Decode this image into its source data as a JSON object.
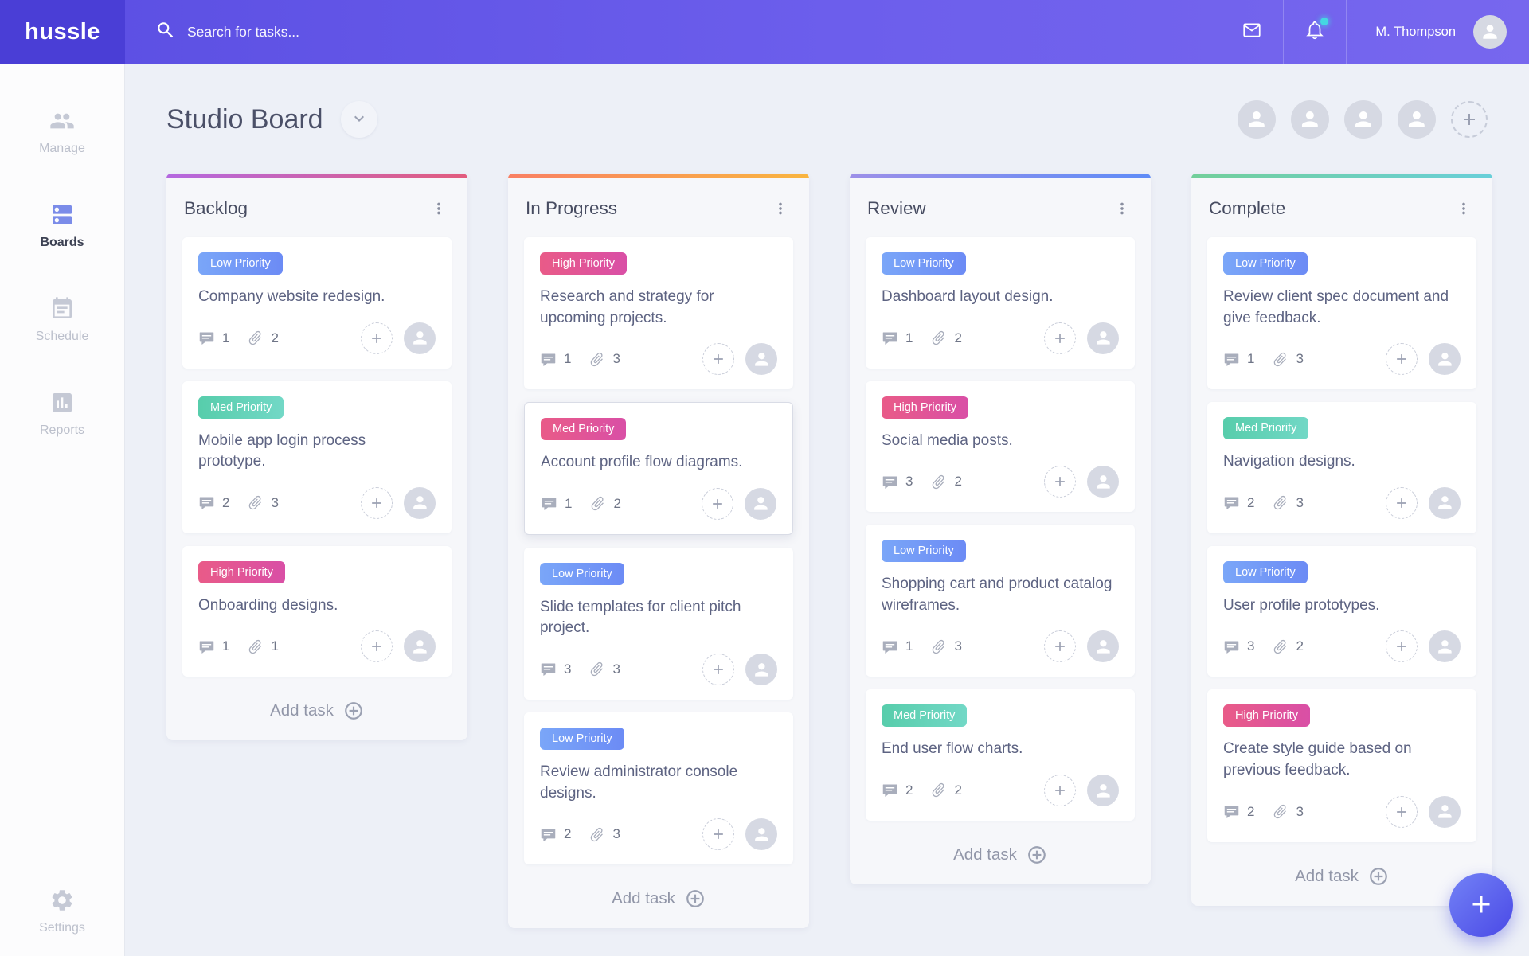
{
  "topbar": {
    "brand": "hussle",
    "search_placeholder": "Search for tasks...",
    "user_name": "M. Thompson",
    "has_notification": true
  },
  "sidebar": {
    "items": [
      {
        "label": "Manage",
        "icon": "people-icon",
        "active": false
      },
      {
        "label": "Boards",
        "icon": "boards-icon",
        "active": true
      },
      {
        "label": "Schedule",
        "icon": "calendar-icon",
        "active": false
      },
      {
        "label": "Reports",
        "icon": "bar-chart-icon",
        "active": false
      }
    ],
    "settings_label": "Settings"
  },
  "header": {
    "title": "Studio Board",
    "member_avatars": 4
  },
  "colors": {
    "topbar_left": "#4a3ed6",
    "topbar_right": "#7767ee",
    "notification_dot": "#45d7e2",
    "pill_low": "#6c8bf5",
    "pill_med": "#57cdab",
    "pill_high": "#e95b88",
    "fab": "#4a49e6"
  },
  "board": {
    "add_task_label": "Add task",
    "columns": [
      {
        "name": "Backlog",
        "accent": [
          "#b468e0",
          "#e25c7d"
        ],
        "cards": [
          {
            "priority": "Low Priority",
            "variant": "blue",
            "title": "Company website redesign.",
            "comments": 1,
            "attachments": 2,
            "selected": false
          },
          {
            "priority": "Med Priority",
            "variant": "teal",
            "title": "Mobile app login process prototype.",
            "comments": 2,
            "attachments": 3,
            "selected": false
          },
          {
            "priority": "High Priority",
            "variant": "pink",
            "title": "Onboarding designs.",
            "comments": 1,
            "attachments": 1,
            "selected": false
          }
        ]
      },
      {
        "name": "In Progress",
        "accent": [
          "#f97f63",
          "#f9b53f"
        ],
        "cards": [
          {
            "priority": "High Priority",
            "variant": "pink",
            "title": "Research and strategy for upcoming projects.",
            "comments": 1,
            "attachments": 3,
            "selected": false
          },
          {
            "priority": "Med Priority",
            "variant": "pink",
            "title": "Account profile flow diagrams.",
            "comments": 1,
            "attachments": 2,
            "selected": true
          },
          {
            "priority": "Low Priority",
            "variant": "blue",
            "title": "Slide templates for client pitch project.",
            "comments": 3,
            "attachments": 3,
            "selected": false
          },
          {
            "priority": "Low Priority",
            "variant": "blue",
            "title": "Review administrator console designs.",
            "comments": 2,
            "attachments": 3,
            "selected": false
          }
        ]
      },
      {
        "name": "Review",
        "accent": [
          "#9c8fe8",
          "#5f8cf7"
        ],
        "cards": [
          {
            "priority": "Low Priority",
            "variant": "blue",
            "title": "Dashboard layout design.",
            "comments": 1,
            "attachments": 2,
            "selected": false
          },
          {
            "priority": "High Priority",
            "variant": "pink",
            "title": "Social media posts.",
            "comments": 3,
            "attachments": 2,
            "selected": false
          },
          {
            "priority": "Low Priority",
            "variant": "blue",
            "title": "Shopping cart and product catalog wireframes.",
            "comments": 1,
            "attachments": 3,
            "selected": false
          },
          {
            "priority": "Med Priority",
            "variant": "teal",
            "title": "End user flow charts.",
            "comments": 2,
            "attachments": 2,
            "selected": false
          }
        ]
      },
      {
        "name": "Complete",
        "accent": [
          "#72cf9a",
          "#68cfd9"
        ],
        "cards": [
          {
            "priority": "Low Priority",
            "variant": "blue",
            "title": "Review client spec document and give feedback.",
            "comments": 1,
            "attachments": 3,
            "selected": false
          },
          {
            "priority": "Med Priority",
            "variant": "teal",
            "title": "Navigation designs.",
            "comments": 2,
            "attachments": 3,
            "selected": false
          },
          {
            "priority": "Low Priority",
            "variant": "blue",
            "title": "User profile prototypes.",
            "comments": 3,
            "attachments": 2,
            "selected": false
          },
          {
            "priority": "High Priority",
            "variant": "pink",
            "title": "Create style guide based on previous feedback.",
            "comments": 2,
            "attachments": 3,
            "selected": false
          }
        ]
      }
    ]
  }
}
